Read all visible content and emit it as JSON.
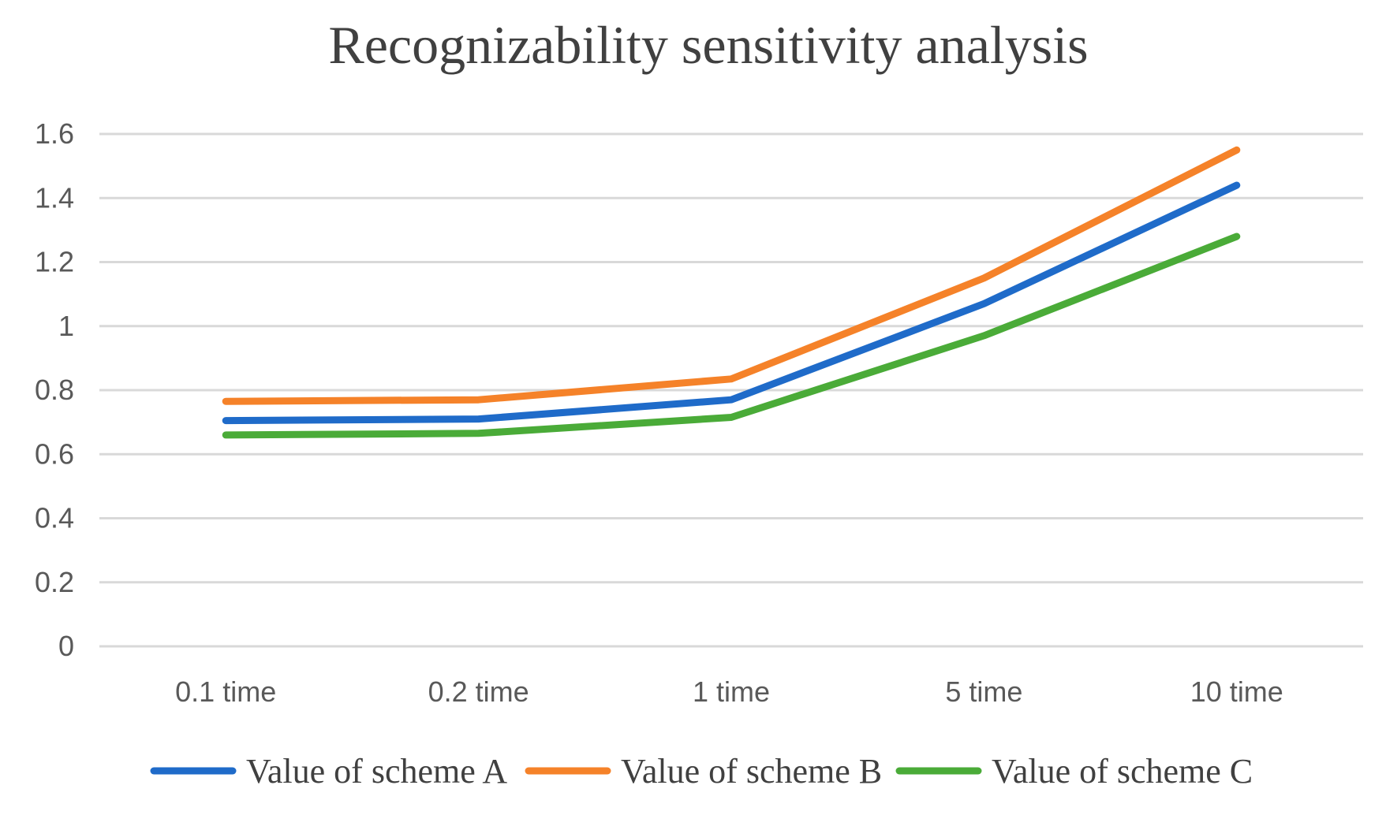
{
  "chart_data": {
    "type": "line",
    "title": "Recognizability sensitivity analysis",
    "xlabel": "",
    "ylabel": "",
    "categories": [
      "0.1 time",
      "0.2 time",
      "1 time",
      "5 time",
      "10 time"
    ],
    "ylim": [
      0,
      1.6
    ],
    "yticks": [
      "0",
      "0.2",
      "0.4",
      "0.6",
      "0.8",
      "1",
      "1.2",
      "1.4",
      "1.6"
    ],
    "grid": true,
    "legend_position": "bottom",
    "series": [
      {
        "name": "Value of scheme A",
        "color": "#1f6bc9",
        "values": [
          0.705,
          0.71,
          0.77,
          1.07,
          1.44
        ]
      },
      {
        "name": "Value of scheme B",
        "color": "#f58229",
        "values": [
          0.765,
          0.77,
          0.835,
          1.15,
          1.55
        ]
      },
      {
        "name": "Value of scheme C",
        "color": "#4aab38",
        "values": [
          0.66,
          0.665,
          0.715,
          0.97,
          1.28
        ]
      }
    ]
  }
}
